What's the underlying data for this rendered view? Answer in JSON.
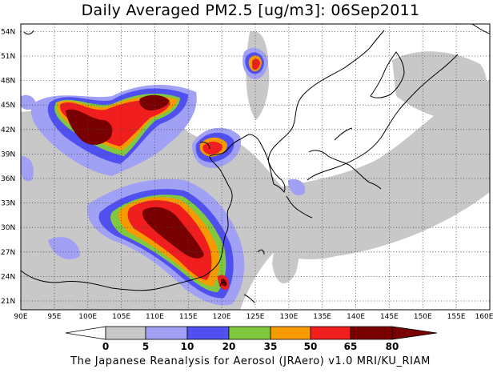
{
  "title": "Daily Averaged PM2.5 [ug/m3]: 06Sep2011",
  "footer": "The Japanese Reanalysis for Aerosol (JRAero) v1.0 MRI/KU_RIAM",
  "map": {
    "lon_range": [
      90,
      160
    ],
    "lat_range": [
      20,
      55
    ],
    "lat_ticks": [
      "54N",
      "51N",
      "48N",
      "45N",
      "42N",
      "39N",
      "36N",
      "33N",
      "30N",
      "27N",
      "24N",
      "21N"
    ],
    "lon_ticks": [
      "90E",
      "95E",
      "100E",
      "105E",
      "110E",
      "115E",
      "120E",
      "125E",
      "130E",
      "135E",
      "140E",
      "145E",
      "150E",
      "155E",
      "160E"
    ],
    "grid": "dotted"
  },
  "colorbar": {
    "levels": [
      "0",
      "5",
      "10",
      "20",
      "35",
      "50",
      "65",
      "80"
    ],
    "colors": [
      "#ffffff",
      "#c8c8c8",
      "#a0a0f5",
      "#5050f0",
      "#80c840",
      "#f59b00",
      "#f01e1e",
      "#780000"
    ]
  }
}
